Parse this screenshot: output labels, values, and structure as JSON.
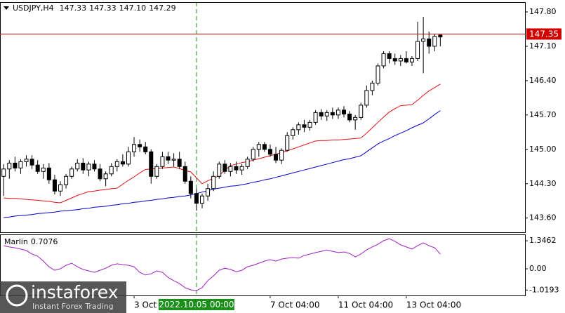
{
  "chart_data": {
    "type": "candlestick",
    "symbol": "USDJPY,H4",
    "header_ohlc": [
      "147.33",
      "147.33",
      "147.10",
      "147.29"
    ],
    "categories": [
      null,
      null,
      null,
      null,
      null,
      null,
      null,
      null,
      null,
      null,
      null,
      null,
      null,
      null,
      null,
      null,
      null,
      null,
      null,
      null,
      null,
      null,
      null,
      "3 Oct",
      null,
      null,
      null,
      null,
      null,
      null,
      null,
      null,
      null,
      null,
      "2022.10.05 00:00",
      null,
      null,
      null,
      null,
      null,
      null,
      null,
      null,
      null,
      null,
      null,
      null,
      "7 Oct 04:00",
      null,
      null,
      null,
      null,
      null,
      null,
      null,
      null,
      null,
      null,
      null,
      "11 Oct 04:00",
      null,
      null,
      null,
      null,
      null,
      null,
      null,
      null,
      null,
      null,
      null,
      "13 Oct 04:00",
      null,
      null,
      null,
      null,
      null,
      null
    ],
    "candles": [
      [
        144.45,
        144.7,
        144.05,
        144.6
      ],
      [
        144.6,
        144.78,
        144.4,
        144.72
      ],
      [
        144.72,
        144.85,
        144.55,
        144.62
      ],
      [
        144.62,
        144.8,
        144.5,
        144.75
      ],
      [
        144.75,
        144.88,
        144.65,
        144.8
      ],
      [
        144.8,
        144.88,
        144.6,
        144.68
      ],
      [
        144.68,
        144.78,
        144.5,
        144.55
      ],
      [
        144.55,
        144.7,
        144.4,
        144.62
      ],
      [
        144.62,
        144.72,
        144.3,
        144.38
      ],
      [
        144.38,
        144.48,
        144.08,
        144.15
      ],
      [
        144.15,
        144.35,
        144.05,
        144.28
      ],
      [
        144.28,
        144.5,
        144.2,
        144.45
      ],
      [
        144.45,
        144.65,
        144.4,
        144.6
      ],
      [
        144.6,
        144.8,
        144.55,
        144.72
      ],
      [
        144.72,
        144.82,
        144.5,
        144.58
      ],
      [
        144.58,
        144.75,
        144.45,
        144.7
      ],
      [
        144.7,
        144.78,
        144.55,
        144.6
      ],
      [
        144.6,
        144.7,
        144.35,
        144.4
      ],
      [
        144.4,
        144.55,
        144.25,
        144.5
      ],
      [
        144.5,
        144.72,
        144.45,
        144.65
      ],
      [
        144.65,
        144.8,
        144.55,
        144.75
      ],
      [
        144.75,
        144.9,
        144.65,
        144.7
      ],
      [
        144.7,
        145.05,
        144.65,
        144.95
      ],
      [
        144.95,
        145.25,
        144.85,
        145.1
      ],
      [
        145.1,
        145.2,
        144.95,
        145.05
      ],
      [
        145.05,
        145.15,
        144.9,
        144.95
      ],
      [
        144.95,
        145.0,
        144.3,
        144.45
      ],
      [
        144.45,
        144.7,
        144.4,
        144.65
      ],
      [
        144.65,
        144.95,
        144.6,
        144.85
      ],
      [
        144.85,
        144.95,
        144.7,
        144.78
      ],
      [
        144.78,
        144.92,
        144.65,
        144.8
      ],
      [
        144.8,
        144.95,
        144.6,
        144.65
      ],
      [
        144.65,
        144.75,
        144.3,
        144.35
      ],
      [
        144.35,
        144.45,
        144.0,
        144.1
      ],
      [
        144.1,
        144.2,
        143.75,
        143.9
      ],
      [
        143.9,
        144.1,
        143.8,
        144.05
      ],
      [
        144.05,
        144.3,
        143.95,
        144.2
      ],
      [
        144.2,
        144.55,
        144.15,
        144.45
      ],
      [
        144.45,
        144.75,
        144.4,
        144.7
      ],
      [
        144.7,
        144.78,
        144.5,
        144.55
      ],
      [
        144.55,
        144.72,
        144.45,
        144.65
      ],
      [
        144.65,
        144.75,
        144.5,
        144.58
      ],
      [
        144.58,
        144.7,
        144.48,
        144.65
      ],
      [
        144.65,
        144.85,
        144.6,
        144.8
      ],
      [
        144.8,
        145.05,
        144.75,
        145.0
      ],
      [
        145.0,
        145.15,
        144.85,
        145.1
      ],
      [
        145.1,
        145.15,
        144.95,
        145.0
      ],
      [
        145.0,
        145.1,
        144.85,
        144.9
      ],
      [
        144.9,
        145.05,
        144.72,
        144.78
      ],
      [
        144.78,
        145.02,
        144.7,
        144.98
      ],
      [
        144.98,
        145.35,
        144.95,
        145.28
      ],
      [
        145.28,
        145.45,
        145.2,
        145.4
      ],
      [
        145.4,
        145.55,
        145.3,
        145.5
      ],
      [
        145.5,
        145.6,
        145.35,
        145.45
      ],
      [
        145.45,
        145.6,
        145.38,
        145.55
      ],
      [
        145.55,
        145.8,
        145.5,
        145.75
      ],
      [
        145.75,
        145.82,
        145.6,
        145.68
      ],
      [
        145.68,
        145.8,
        145.58,
        145.75
      ],
      [
        145.75,
        145.85,
        145.62,
        145.7
      ],
      [
        145.7,
        145.85,
        145.62,
        145.8
      ],
      [
        145.8,
        145.88,
        145.65,
        145.72
      ],
      [
        145.72,
        145.78,
        145.55,
        145.6
      ],
      [
        145.6,
        145.7,
        145.4,
        145.65
      ],
      [
        145.65,
        145.95,
        145.6,
        145.9
      ],
      [
        145.9,
        146.3,
        145.85,
        146.2
      ],
      [
        146.2,
        146.4,
        146.1,
        146.35
      ],
      [
        146.35,
        146.75,
        146.3,
        146.7
      ],
      [
        146.7,
        147.0,
        146.65,
        146.95
      ],
      [
        146.95,
        147.0,
        146.75,
        146.85
      ],
      [
        146.85,
        146.95,
        146.72,
        146.8
      ],
      [
        146.8,
        146.92,
        146.7,
        146.85
      ],
      [
        146.85,
        147.0,
        146.75,
        146.78
      ],
      [
        146.78,
        146.9,
        146.7,
        146.85
      ],
      [
        146.85,
        147.6,
        146.8,
        147.2
      ],
      [
        147.2,
        147.7,
        146.55,
        147.25
      ],
      [
        147.25,
        147.4,
        146.95,
        147.1
      ],
      [
        147.1,
        147.35,
        147.0,
        147.3
      ],
      [
        147.33,
        147.33,
        147.1,
        147.29
      ]
    ],
    "candle_colors": {
      "up": "#ffffff",
      "down": "#000000",
      "outline": "#000000"
    },
    "series": [
      {
        "color": "#e01010",
        "values": [
          144.01,
          144.0,
          144.0,
          143.99,
          143.98,
          143.97,
          143.96,
          143.95,
          143.94,
          143.92,
          143.91,
          143.96,
          144.01,
          144.06,
          144.1,
          144.14,
          144.15,
          144.17,
          144.18,
          144.2,
          144.21,
          144.29,
          144.37,
          144.44,
          144.52,
          144.59,
          144.6,
          144.61,
          144.62,
          144.63,
          144.64,
          144.61,
          144.57,
          144.54,
          144.42,
          144.3,
          144.36,
          144.41,
          144.47,
          144.57,
          144.67,
          144.7,
          144.73,
          144.75,
          144.78,
          144.81,
          144.84,
          144.87,
          144.9,
          144.94,
          144.97,
          145.01,
          145.05,
          145.09,
          145.13,
          145.17,
          145.18,
          145.18,
          145.19,
          145.19,
          145.2,
          145.21,
          145.22,
          145.23,
          145.33,
          145.44,
          145.55,
          145.66,
          145.76,
          145.83,
          145.89,
          145.9,
          145.91,
          146.0,
          146.1,
          146.19,
          146.26,
          146.33
        ]
      },
      {
        "color": "#0000c8",
        "values": [
          143.61,
          143.62,
          143.64,
          143.65,
          143.66,
          143.67,
          143.69,
          143.7,
          143.71,
          143.72,
          143.74,
          143.75,
          143.76,
          143.77,
          143.79,
          143.8,
          143.82,
          143.83,
          143.84,
          143.86,
          143.87,
          143.89,
          143.9,
          143.92,
          143.93,
          143.95,
          143.96,
          143.98,
          143.99,
          144.01,
          144.02,
          144.04,
          144.05,
          144.07,
          144.1,
          144.13,
          144.16,
          144.19,
          144.21,
          144.23,
          144.25,
          144.26,
          144.28,
          144.3,
          144.33,
          144.35,
          144.38,
          144.4,
          144.43,
          144.46,
          144.49,
          144.52,
          144.55,
          144.58,
          144.61,
          144.64,
          144.67,
          144.7,
          144.73,
          144.76,
          144.79,
          144.81,
          144.84,
          144.87,
          144.95,
          145.03,
          145.11,
          145.17,
          145.22,
          145.28,
          145.33,
          145.38,
          145.44,
          145.49,
          145.54,
          145.62,
          145.71,
          145.79
        ]
      }
    ],
    "ylim": [
      143.31,
      148.0
    ],
    "yticks": [
      {
        "value": 147.8,
        "label": "147.80"
      },
      {
        "value": 147.1,
        "label": "147.10"
      },
      {
        "value": 146.4,
        "label": "146.40"
      },
      {
        "value": 145.7,
        "label": "145.70"
      },
      {
        "value": 145.0,
        "label": "145.00"
      },
      {
        "value": 144.3,
        "label": "144.30"
      },
      {
        "value": 143.6,
        "label": "143.60"
      }
    ],
    "price_line": {
      "value": 147.35,
      "color": "#d00000"
    },
    "indicator": {
      "name": "Marlin",
      "current": 0.7076,
      "color": "#a020c0",
      "values": [
        1.11,
        1.05,
        1.01,
        0.95,
        0.88,
        0.71,
        0.61,
        0.37,
        0.1,
        -0.07,
        0.0,
        0.17,
        0.27,
        0.1,
        -0.03,
        -0.1,
        -0.17,
        -0.07,
        0.03,
        0.17,
        0.24,
        0.2,
        0.17,
        0.1,
        -0.17,
        -0.3,
        -0.24,
        -0.1,
        -0.17,
        -0.41,
        -0.57,
        -0.71,
        -0.91,
        -1.01,
        -1.05,
        -0.91,
        -0.57,
        -0.34,
        -0.07,
        0.03,
        -0.03,
        -0.14,
        -0.07,
        0.1,
        0.17,
        0.27,
        0.37,
        0.44,
        0.37,
        0.47,
        0.51,
        0.54,
        0.51,
        0.64,
        0.71,
        0.78,
        0.84,
        0.91,
        0.84,
        0.78,
        0.81,
        0.74,
        0.57,
        0.71,
        0.91,
        1.05,
        1.18,
        1.35,
        1.45,
        1.32,
        1.15,
        1.05,
        0.95,
        1.11,
        1.25,
        1.11,
        1.01,
        0.7076
      ],
      "ylim": [
        -1.28,
        1.62
      ],
      "yticks": [
        {
          "value": 1.3462,
          "label": "1.3462"
        },
        {
          "value": 0,
          "label": "0.00"
        },
        {
          "value": -1.0193,
          "label": "-1.0193"
        }
      ]
    },
    "watermark": {
      "brand": "instaforex",
      "tagline": "Instant Forex Trading"
    }
  }
}
